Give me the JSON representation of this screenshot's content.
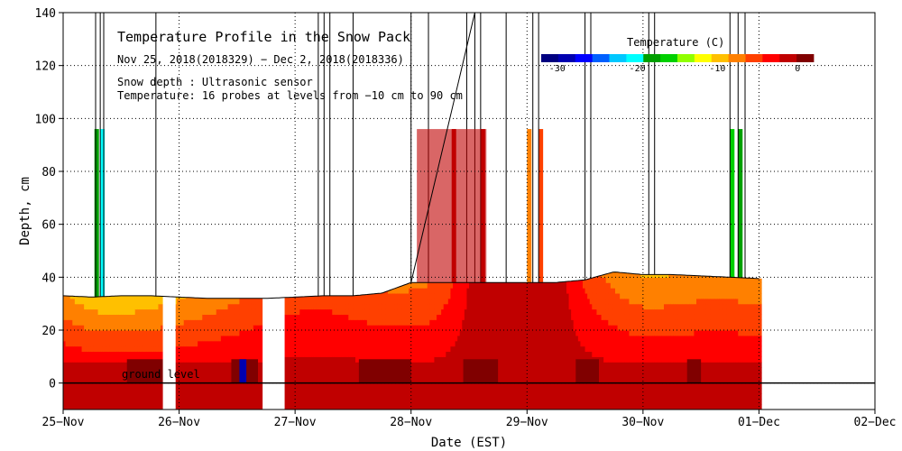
{
  "chart_data": {
    "type": "heatmap",
    "title": "Temperature Profile in the Snow Pack",
    "subtitle": "Nov 25, 2018(2018329) − Dec  2, 2018(2018336)",
    "annotations": [
      "Snow depth : Ultrasonic sensor",
      "Temperature: 16 probes at levels from −10 cm to 90 cm"
    ],
    "ground_label": "ground level",
    "xlabel": "Date (EST)",
    "ylabel": "Depth, cm",
    "x_ticks": [
      "25−Nov",
      "26−Nov",
      "27−Nov",
      "28−Nov",
      "29−Nov",
      "30−Nov",
      "01−Dec",
      "02−Dec"
    ],
    "y_ticks": [
      0,
      20,
      40,
      60,
      80,
      100,
      120,
      140
    ],
    "xlim": [
      0,
      7
    ],
    "ylim": [
      -10,
      140
    ],
    "grid": true,
    "colorbar": {
      "title": "Temperature (C)",
      "ticks": [
        -30,
        -20,
        -10,
        0
      ],
      "range": [
        -32,
        2
      ],
      "colors": [
        "#000080",
        "#0000b0",
        "#0000ff",
        "#0060ff",
        "#00c8ff",
        "#00ffff",
        "#00a000",
        "#00d000",
        "#90ff00",
        "#ffff00",
        "#ffc000",
        "#ff8000",
        "#ff4000",
        "#ff0000",
        "#c00000",
        "#800000"
      ]
    },
    "probe_levels_cm": [
      -10,
      -5,
      0,
      5,
      10,
      15,
      20,
      25,
      30,
      35,
      40,
      50,
      60,
      70,
      80,
      90
    ],
    "snow_depth": {
      "x": [
        0,
        0.25,
        0.5,
        0.75,
        1.0,
        1.25,
        1.5,
        1.75,
        2.0,
        2.25,
        2.5,
        2.75,
        3.0,
        3.25,
        3.5,
        3.75,
        4.0,
        4.25,
        4.5,
        4.75,
        5.0,
        5.25,
        5.5,
        5.75,
        6.0
      ],
      "depth": [
        33,
        32.5,
        33,
        33,
        32.5,
        32,
        32,
        32,
        32.5,
        33,
        33,
        34,
        38,
        38,
        38,
        38,
        38,
        38,
        39,
        42,
        41,
        41,
        40.5,
        40,
        39.5
      ]
    },
    "missing_periods": [
      [
        0.86,
        0.97
      ],
      [
        1.72,
        1.91
      ]
    ],
    "dec1_end": 6.0
  }
}
